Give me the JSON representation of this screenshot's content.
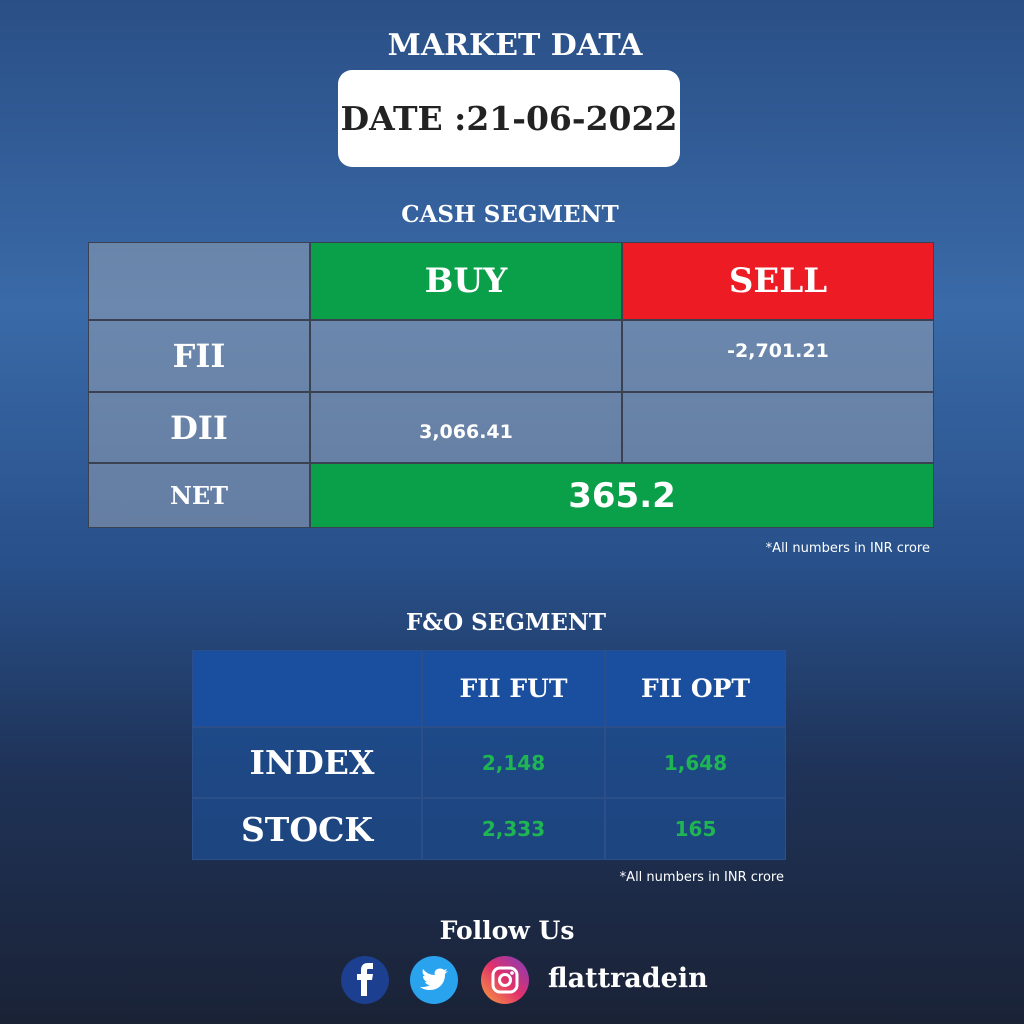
{
  "header": {
    "title": "MARKET DATA",
    "date": "DATE :21-06-2022"
  },
  "cash_segment": {
    "title": "CASH SEGMENT",
    "columns": [
      "BUY",
      "SELL"
    ],
    "rows": [
      {
        "label": "FII",
        "sell": "-2,701.21"
      },
      {
        "label": "DII",
        "buy": "3,066.41"
      }
    ],
    "net": {
      "label": "NET",
      "value": "365.2"
    },
    "note": "*All numbers in INR crore"
  },
  "fo_segment": {
    "title": "F&O SEGMENT",
    "columns": [
      "FII FUT",
      "FII OPT"
    ],
    "rows": [
      {
        "label": "INDEX",
        "values": [
          "2,148",
          "1,648"
        ]
      },
      {
        "label": "STOCK",
        "values": [
          "2,333",
          "165"
        ]
      }
    ],
    "note": "*All numbers in INR crore"
  },
  "footer": {
    "follow": "Follow Us",
    "handle": "flattradein"
  }
}
